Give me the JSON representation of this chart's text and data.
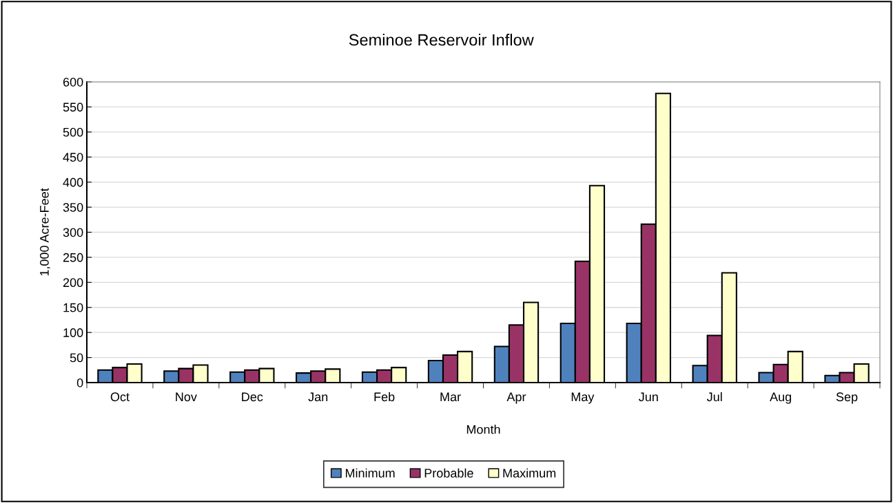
{
  "chart_data": {
    "type": "bar",
    "title": "Seminoe Reservoir Inflow",
    "xlabel": "Month",
    "ylabel": "1,000 Acre-Feet",
    "categories": [
      "Oct",
      "Nov",
      "Dec",
      "Jan",
      "Feb",
      "Mar",
      "Apr",
      "May",
      "Jun",
      "Jul",
      "Aug",
      "Sep"
    ],
    "series": [
      {
        "name": "Minimum",
        "color": "#4f81bd",
        "values": [
          25,
          23,
          21,
          19,
          21,
          44,
          72,
          118,
          118,
          34,
          20,
          14
        ]
      },
      {
        "name": "Probable",
        "color": "#993366",
        "values": [
          30,
          28,
          25,
          23,
          25,
          55,
          115,
          242,
          316,
          94,
          36,
          20
        ]
      },
      {
        "name": "Maximum",
        "color": "#ffffcc",
        "values": [
          37,
          35,
          28,
          27,
          30,
          62,
          160,
          393,
          577,
          219,
          62,
          37
        ]
      }
    ],
    "ylim": [
      0,
      600
    ],
    "yticks": [
      0,
      50,
      100,
      150,
      200,
      250,
      300,
      350,
      400,
      450,
      500,
      550,
      600
    ],
    "grid": "y",
    "legend": "bottom"
  }
}
